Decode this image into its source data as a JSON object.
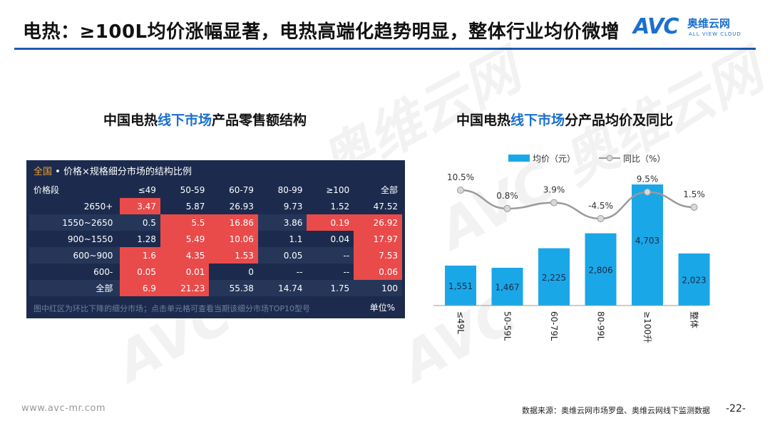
{
  "slide": {
    "title": "电热：≥100L均价涨幅显著，电热高端化趋势明显，整体行业均价微增",
    "footer_url": "www.avc-mr.com",
    "source": "数据来源：奥维云网市场罗盘、奥维云网线下监测数据",
    "page": "-22-"
  },
  "logo": {
    "mark": "AVC",
    "cn": "奥维云网",
    "en": "ALL VIEW CLOUD"
  },
  "watermark": {
    "cn": "奥维云网",
    "en": "ALL VIEW CLOUD",
    "mark": "AVC"
  },
  "left_section": {
    "pre": "中国电热",
    "highlight": "线下市场",
    "post": "产品零售额结构"
  },
  "right_section": {
    "pre": "中国电热",
    "highlight": "线下市场",
    "post": "分产品均价及同比"
  },
  "table_panel": {
    "head_highlight": "全国",
    "head_rest": " • 价格×规格细分市场的结构比例",
    "note": "图中红区为环比下降的细分市场；点击单元格可查看当期该细分市场TOP10型号",
    "unit": "单位%",
    "columns": [
      "价格段",
      "≤49",
      "50-59",
      "60-79",
      "80-99",
      "≥100",
      "全部"
    ]
  },
  "chart_data": [
    {
      "type": "table",
      "columns": [
        "价格段",
        "≤49",
        "50-59",
        "60-79",
        "80-99",
        "≥100",
        "全部"
      ],
      "rows": [
        {
          "label": "2650+",
          "values": [
            "3.47",
            "5.87",
            "26.93",
            "9.73",
            "1.52",
            "47.52"
          ],
          "red": [
            true,
            false,
            false,
            false,
            false,
            false
          ]
        },
        {
          "label": "1550~2650",
          "values": [
            "0.5",
            "5.5",
            "16.86",
            "3.86",
            "0.19",
            "26.92"
          ],
          "red": [
            false,
            true,
            true,
            false,
            true,
            true
          ]
        },
        {
          "label": "900~1550",
          "values": [
            "1.28",
            "5.49",
            "10.06",
            "1.1",
            "0.04",
            "17.97"
          ],
          "red": [
            false,
            true,
            true,
            false,
            false,
            true
          ]
        },
        {
          "label": "600~900",
          "values": [
            "1.6",
            "4.35",
            "1.53",
            "0.05",
            "--",
            "7.53"
          ],
          "red": [
            true,
            true,
            true,
            false,
            false,
            true
          ]
        },
        {
          "label": "600-",
          "values": [
            "0.05",
            "0.01",
            "0",
            "--",
            "--",
            "0.06"
          ],
          "red": [
            true,
            true,
            false,
            false,
            false,
            true
          ]
        },
        {
          "label": "全部",
          "values": [
            "6.9",
            "21.23",
            "55.38",
            "14.74",
            "1.75",
            "100"
          ],
          "red": [
            true,
            true,
            false,
            false,
            false,
            false
          ]
        }
      ],
      "unit": "单位%"
    },
    {
      "type": "bar",
      "categories": [
        "≤49L",
        "50-59L",
        "60-79L",
        "80-99L",
        "≥100升",
        "整体"
      ],
      "series": [
        {
          "name": "均价（元）",
          "type": "bar",
          "values": [
            1551,
            1467,
            2225,
            2806,
            4703,
            2023
          ],
          "labels": [
            "1,551",
            "1,467",
            "2,225",
            "2,806",
            "4,703",
            "2,023"
          ],
          "color": "#1aa7e8"
        },
        {
          "name": "同比（%）",
          "type": "line",
          "values": [
            10.5,
            0.8,
            3.9,
            -4.5,
            9.5,
            1.5
          ],
          "labels": [
            "10.5%",
            "0.8%",
            "3.9%",
            "-4.5%",
            "9.5%",
            "1.5%"
          ],
          "color": "#9a9a9a"
        }
      ],
      "legend_position": "top-center"
    }
  ]
}
